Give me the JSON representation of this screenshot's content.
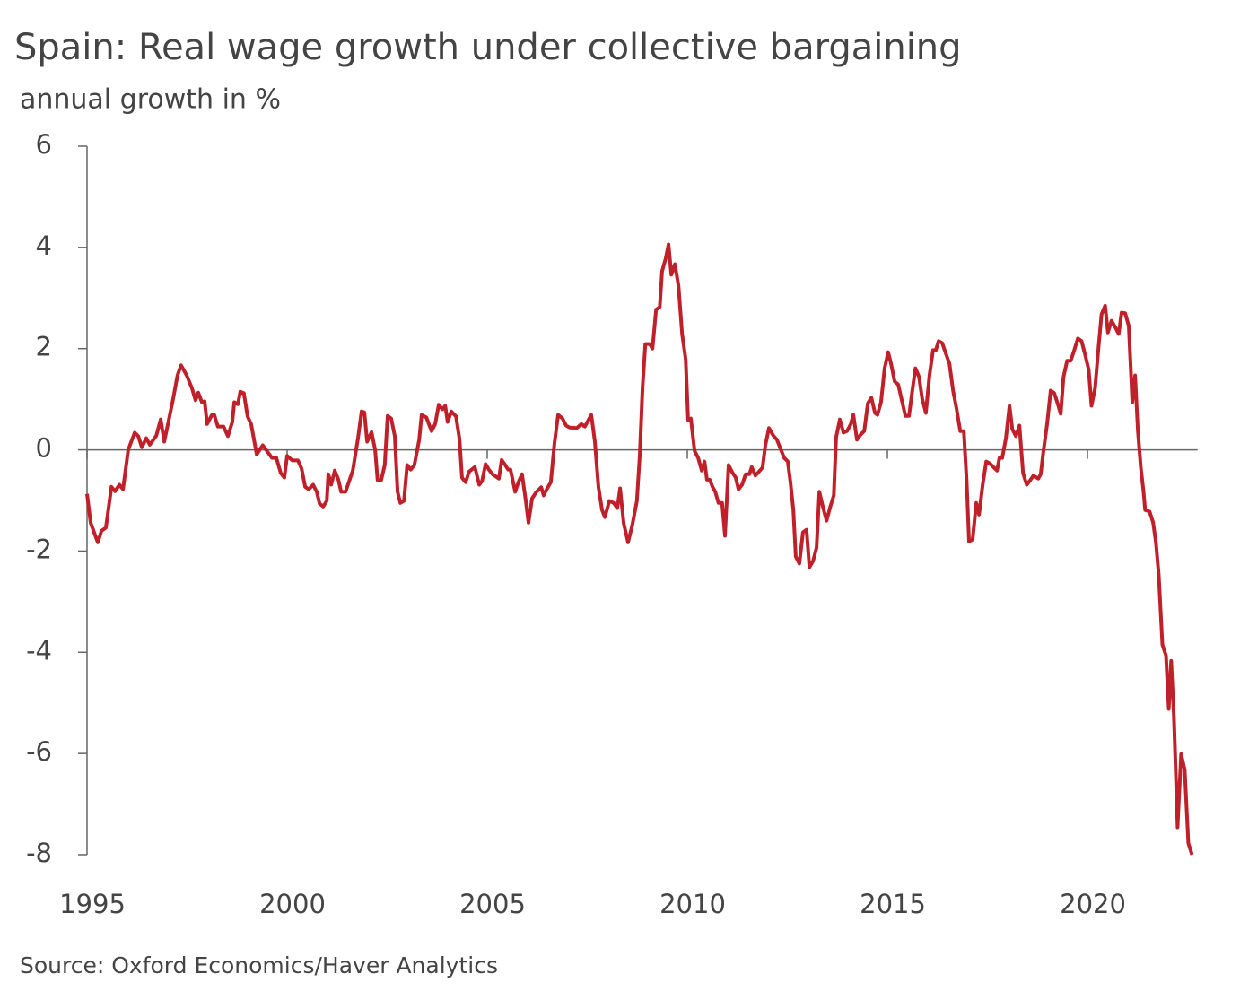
{
  "chart_data": {
    "type": "line",
    "title": "Spain: Real wage growth under collective bargaining",
    "subtitle": "annual growth in %",
    "source": "Source: Oxford Economics/Haver Analytics",
    "color": "#c0202a",
    "xlim": [
      1995,
      2022.75
    ],
    "xticks": [
      1995,
      2000,
      2005,
      2010,
      2015,
      2020
    ],
    "ylim": [
      -8,
      6
    ],
    "yticks": [
      -8,
      -6,
      -4,
      -2,
      0,
      2,
      4,
      6
    ],
    "x": [
      1995.0,
      1995.09,
      1995.27,
      1995.36,
      1995.47,
      1995.61,
      1995.7,
      1995.81,
      1995.9,
      1996.03,
      1996.19,
      1996.28,
      1996.37,
      1996.48,
      1996.57,
      1996.73,
      1996.84,
      1996.93,
      1997.15,
      1997.26,
      1997.35,
      1997.49,
      1997.62,
      1997.71,
      1997.78,
      1997.87,
      1997.94,
      1998.0,
      1998.12,
      1998.18,
      1998.27,
      1998.41,
      1998.52,
      1998.63,
      1998.68,
      1998.77,
      1998.83,
      1998.92,
      1999.01,
      1999.1,
      1999.24,
      1999.39,
      1999.51,
      1999.62,
      1999.73,
      1999.84,
      1999.93,
      2000.0,
      2000.13,
      2000.27,
      2000.36,
      2000.45,
      2000.54,
      2000.65,
      2000.74,
      2000.81,
      2000.9,
      2000.99,
      2001.03,
      2001.1,
      2001.19,
      2001.28,
      2001.35,
      2001.46,
      2001.64,
      2001.77,
      2001.86,
      2001.93,
      2002.0,
      2002.11,
      2002.2,
      2002.26,
      2002.35,
      2002.44,
      2002.51,
      2002.6,
      2002.69,
      2002.76,
      2002.83,
      2002.92,
      2003.0,
      2003.09,
      2003.18,
      2003.3,
      2003.36,
      2003.48,
      2003.61,
      2003.7,
      2003.79,
      2003.88,
      2003.95,
      2004.01,
      2004.1,
      2004.22,
      2004.31,
      2004.37,
      2004.46,
      2004.55,
      2004.69,
      2004.8,
      2004.87,
      2004.96,
      2005.04,
      2005.13,
      2005.29,
      2005.36,
      2005.45,
      2005.52,
      2005.58,
      2005.7,
      2005.78,
      2005.87,
      2005.96,
      2006.03,
      2006.12,
      2006.23,
      2006.35,
      2006.41,
      2006.5,
      2006.59,
      2006.68,
      2006.77,
      2006.88,
      2006.97,
      2007.06,
      2007.24,
      2007.35,
      2007.44,
      2007.6,
      2007.69,
      2007.78,
      2007.87,
      2007.94,
      2008.05,
      2008.16,
      2008.25,
      2008.32,
      2008.41,
      2008.52,
      2008.63,
      2008.74,
      2008.81,
      2008.88,
      2008.95,
      2009.06,
      2009.13,
      2009.22,
      2009.31,
      2009.37,
      2009.46,
      2009.53,
      2009.6,
      2009.69,
      2009.78,
      2009.87,
      2009.96,
      2010.02,
      2010.09,
      2010.18,
      2010.27,
      2010.36,
      2010.43,
      2010.49,
      2010.56,
      2010.63,
      2010.7,
      2010.78,
      2010.87,
      2010.94,
      2011.03,
      2011.12,
      2011.21,
      2011.28,
      2011.37,
      2011.46,
      2011.55,
      2011.61,
      2011.7,
      2011.79,
      2011.88,
      2011.95,
      2012.04,
      2012.15,
      2012.24,
      2012.33,
      2012.42,
      2012.51,
      2012.58,
      2012.65,
      2012.71,
      2012.8,
      2012.89,
      2012.98,
      2013.05,
      2013.14,
      2013.23,
      2013.3,
      2013.39,
      2013.48,
      2013.57,
      2013.66,
      2013.72,
      2013.81,
      2013.9,
      2013.99,
      2014.08,
      2014.15,
      2014.24,
      2014.33,
      2014.42,
      2014.51,
      2014.6,
      2014.69,
      2014.75,
      2014.84,
      2014.93,
      2015.02,
      2015.09,
      2015.18,
      2015.27,
      2015.36,
      2015.45,
      2015.54,
      2015.63,
      2015.7,
      2015.79,
      2015.87,
      2015.96,
      2016.05,
      2016.14,
      2016.21,
      2016.28,
      2016.37,
      2016.46,
      2016.55,
      2016.64,
      2016.73,
      2016.82,
      2016.91,
      2016.98,
      2017.04,
      2017.13,
      2017.22,
      2017.29,
      2017.38,
      2017.47,
      2017.56,
      2017.65,
      2017.74,
      2017.8,
      2017.87,
      2017.96,
      2018.05,
      2018.12,
      2018.21,
      2018.3,
      2018.39,
      2018.48,
      2018.57,
      2018.65,
      2018.77,
      2018.83,
      2018.9,
      2018.99,
      2019.08,
      2019.17,
      2019.26,
      2019.33,
      2019.4,
      2019.49,
      2019.58,
      2019.67,
      2019.76,
      2019.85,
      2019.94,
      2020.03,
      2020.1,
      2020.19,
      2020.28,
      2020.35,
      2020.44,
      2020.51,
      2020.6,
      2020.69,
      2020.78,
      2020.85,
      2020.94,
      2021.03,
      2021.12,
      2021.19,
      2021.26,
      2021.33,
      2021.4,
      2021.44,
      2021.55,
      2021.64,
      2021.71,
      2021.78,
      2021.87,
      2021.96,
      2022.03,
      2022.09,
      2022.16,
      2022.25,
      2022.34,
      2022.43,
      2022.52,
      2022.61
    ],
    "values": [
      -0.87,
      -1.44,
      -1.83,
      -1.6,
      -1.54,
      -0.73,
      -0.82,
      -0.69,
      -0.78,
      0,
      0.34,
      0.27,
      0.05,
      0.23,
      0.1,
      0.28,
      0.6,
      0.16,
      1.0,
      1.47,
      1.67,
      1.47,
      1.22,
      0.98,
      1.13,
      0.94,
      0.96,
      0.51,
      0.69,
      0.69,
      0.46,
      0.46,
      0.27,
      0.55,
      0.94,
      0.9,
      1.15,
      1.12,
      0.66,
      0.51,
      -0.09,
      0.09,
      -0.04,
      -0.16,
      -0.16,
      -0.46,
      -0.55,
      -0.12,
      -0.21,
      -0.21,
      -0.37,
      -0.73,
      -0.78,
      -0.69,
      -0.83,
      -1.06,
      -1.12,
      -1.01,
      -0.48,
      -0.69,
      -0.41,
      -0.59,
      -0.83,
      -0.83,
      -0.41,
      0.23,
      0.76,
      0.74,
      0.16,
      0.35,
      0,
      -0.6,
      -0.6,
      -0.3,
      0.67,
      0.62,
      0.27,
      -0.83,
      -1.05,
      -1.01,
      -0.3,
      -0.39,
      -0.3,
      0.2,
      0.69,
      0.64,
      0.37,
      0.51,
      0.89,
      0.8,
      0.87,
      0.55,
      0.76,
      0.66,
      0.2,
      -0.55,
      -0.64,
      -0.43,
      -0.34,
      -0.69,
      -0.62,
      -0.28,
      -0.39,
      -0.48,
      -0.57,
      -0.2,
      -0.3,
      -0.39,
      -0.39,
      -0.83,
      -0.64,
      -0.48,
      -0.98,
      -1.44,
      -0.96,
      -0.83,
      -0.74,
      -0.9,
      -0.76,
      -0.64,
      0.12,
      0.69,
      0.62,
      0.48,
      0.44,
      0.43,
      0.51,
      0.46,
      0.69,
      0.16,
      -0.74,
      -1.19,
      -1.33,
      -1.01,
      -1.05,
      -1.15,
      -0.76,
      -1.45,
      -1.83,
      -1.47,
      -1.01,
      -0.12,
      1.22,
      2.09,
      2.09,
      2.0,
      2.77,
      2.82,
      3.53,
      3.78,
      4.06,
      3.46,
      3.67,
      3.24,
      2.29,
      1.79,
      0.59,
      0.62,
      -0.02,
      -0.16,
      -0.41,
      -0.23,
      -0.59,
      -0.59,
      -0.73,
      -0.83,
      -1.05,
      -1.05,
      -1.7,
      -0.3,
      -0.44,
      -0.55,
      -0.78,
      -0.69,
      -0.48,
      -0.48,
      -0.34,
      -0.51,
      -0.43,
      -0.35,
      0.09,
      0.43,
      0.28,
      0.2,
      0.02,
      -0.16,
      -0.23,
      -0.66,
      -1.19,
      -2.11,
      -2.25,
      -1.63,
      -1.58,
      -2.32,
      -2.2,
      -1.93,
      -0.83,
      -1.13,
      -1.4,
      -1.13,
      -0.9,
      0.25,
      0.6,
      0.34,
      0.37,
      0.5,
      0.69,
      0.2,
      0.3,
      0.37,
      0.92,
      1.03,
      0.73,
      0.69,
      0.94,
      1.61,
      1.93,
      1.7,
      1.35,
      1.29,
      0.98,
      0.67,
      0.67,
      1.21,
      1.61,
      1.44,
      1.01,
      0.73,
      1.47,
      1.97,
      1.97,
      2.15,
      2.11,
      1.9,
      1.7,
      1.17,
      0.8,
      0.37,
      0.37,
      -0.6,
      -1.81,
      -1.77,
      -1.05,
      -1.28,
      -0.69,
      -0.23,
      -0.27,
      -0.34,
      -0.41,
      -0.16,
      -0.16,
      0.23,
      0.87,
      0.41,
      0.27,
      0.48,
      -0.46,
      -0.69,
      -0.6,
      -0.51,
      -0.57,
      -0.48,
      -0.02,
      0.51,
      1.17,
      1.12,
      0.9,
      0.71,
      1.44,
      1.76,
      1.76,
      1.97,
      2.2,
      2.15,
      1.88,
      1.58,
      0.87,
      1.22,
      2.06,
      2.68,
      2.85,
      2.32,
      2.55,
      2.43,
      2.29,
      2.71,
      2.7,
      2.45,
      0.94,
      1.47,
      0.37,
      -0.34,
      -0.83,
      -1.19,
      -1.22,
      -1.44,
      -1.83,
      -2.46,
      -3.85,
      -4.06,
      -5.12,
      -4.17,
      -5.3,
      -7.46,
      -6.01,
      -6.33,
      -7.77,
      -8.0
    ]
  }
}
